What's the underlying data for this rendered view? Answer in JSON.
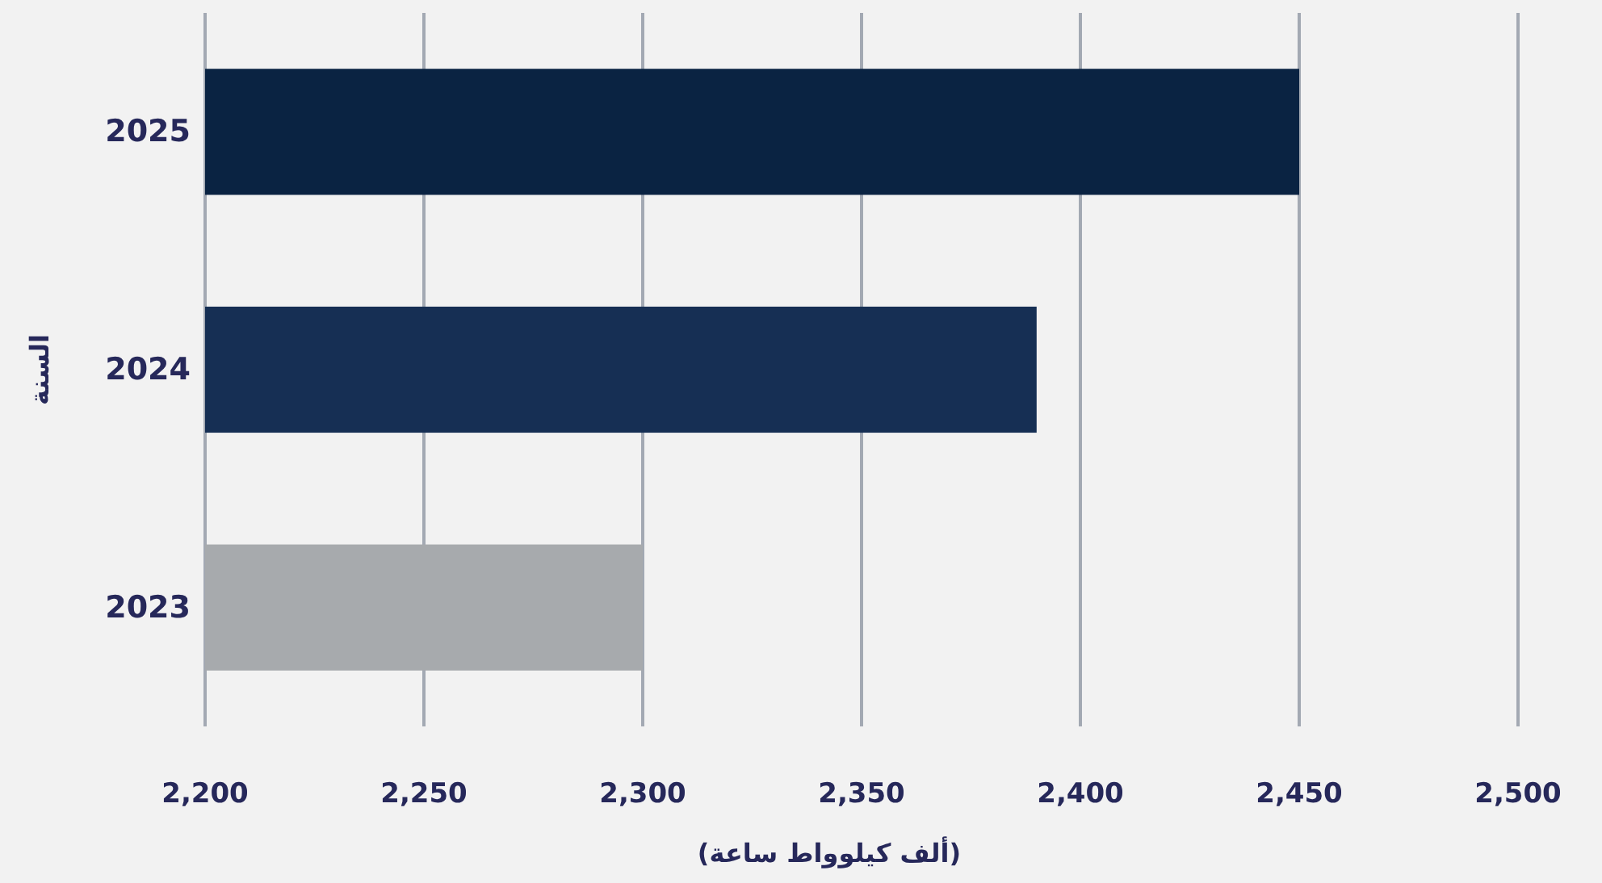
{
  "chart_data": {
    "type": "bar",
    "orientation": "horizontal",
    "categories": [
      "2025",
      "2024",
      "2023"
    ],
    "values": [
      2450,
      2390,
      2300
    ],
    "colors": [
      "#0a2342",
      "#162f54",
      "#a7aaad"
    ],
    "xlim": [
      2200,
      2500
    ],
    "xticks": [
      {
        "value": 2200,
        "label": "2,200"
      },
      {
        "value": 2250,
        "label": "2,250"
      },
      {
        "value": 2300,
        "label": "2,300"
      },
      {
        "value": 2350,
        "label": "2,350"
      },
      {
        "value": 2400,
        "label": "2,400"
      },
      {
        "value": 2450,
        "label": "2,450"
      },
      {
        "value": 2500,
        "label": "2,500"
      }
    ],
    "xlabel": "(ألف كيلوواط ساعة)",
    "ylabel": "السنة",
    "grid": "x"
  }
}
